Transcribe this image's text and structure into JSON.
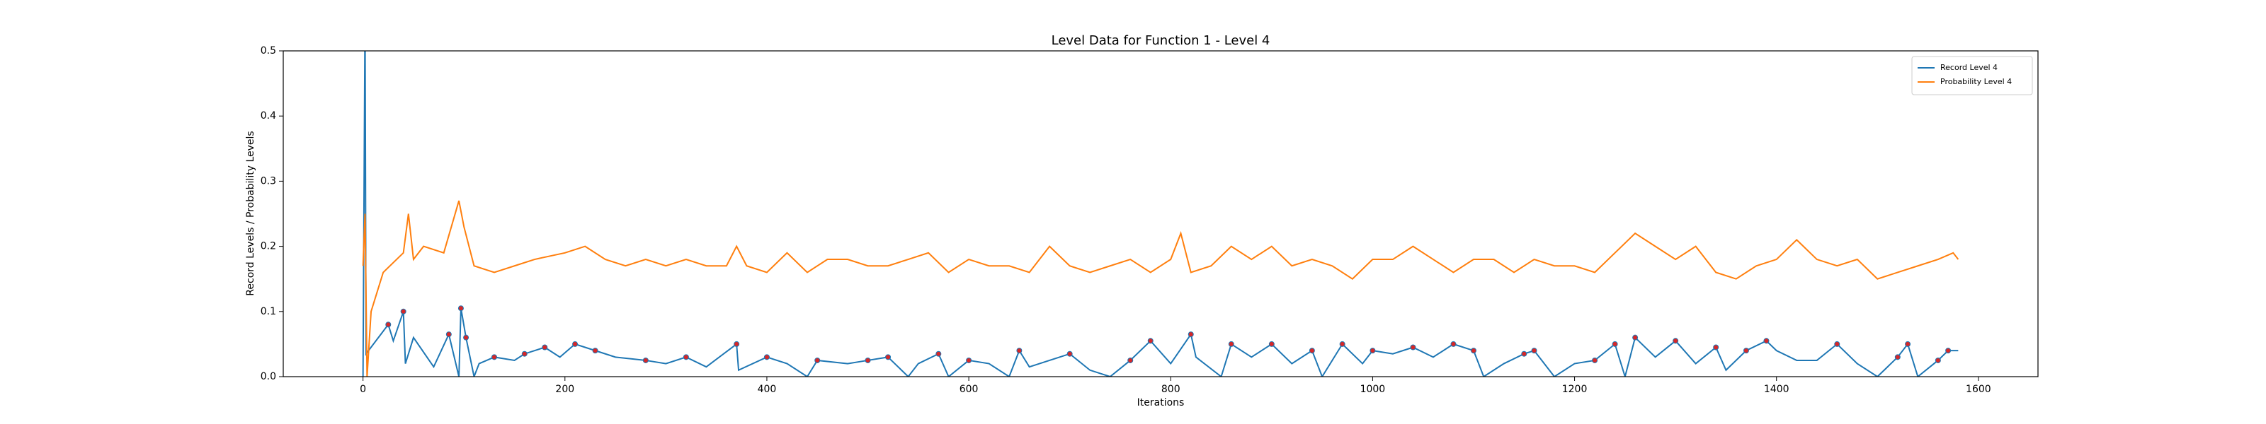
{
  "chart_data": {
    "type": "line",
    "title": "Level Data for Function 1 - Level 4",
    "x_label": "Iterations",
    "y_label": "Record Levels / Probability Levels",
    "xlim": [
      -79,
      1659
    ],
    "ylim": [
      0,
      0.5
    ],
    "xticks": [
      0,
      200,
      400,
      600,
      800,
      1000,
      1200,
      1400,
      1600
    ],
    "yticks": [
      {
        "value": 0,
        "label": "0.0"
      },
      0.1,
      0.2,
      0.3,
      0.4,
      0.5
    ],
    "legend": "upper right",
    "series": [
      {
        "name": "Record Level 4",
        "color": "#1f77b4",
        "x": [
          0,
          2,
          3,
          25,
          30,
          40,
          42,
          50,
          70,
          85,
          95,
          97,
          102,
          110,
          115,
          130,
          150,
          160,
          180,
          195,
          210,
          230,
          250,
          280,
          300,
          320,
          340,
          370,
          372,
          400,
          420,
          440,
          450,
          480,
          500,
          520,
          540,
          550,
          570,
          580,
          600,
          620,
          640,
          650,
          660,
          680,
          700,
          720,
          740,
          760,
          780,
          800,
          820,
          825,
          850,
          860,
          880,
          900,
          920,
          940,
          950,
          970,
          990,
          1000,
          1020,
          1040,
          1060,
          1080,
          1100,
          1110,
          1130,
          1150,
          1160,
          1180,
          1200,
          1220,
          1240,
          1250,
          1260,
          1280,
          1300,
          1320,
          1340,
          1350,
          1370,
          1390,
          1400,
          1420,
          1440,
          1460,
          1480,
          1500,
          1520,
          1530,
          1540,
          1560,
          1570,
          1580
        ],
        "values": [
          0,
          0.55,
          0.035,
          0.08,
          0.055,
          0.1,
          0.02,
          0.06,
          0.015,
          0.065,
          0,
          0.105,
          0.06,
          0,
          0.02,
          0.03,
          0.025,
          0.035,
          0.045,
          0.03,
          0.05,
          0.04,
          0.03,
          0.025,
          0.02,
          0.03,
          0.015,
          0.05,
          0.01,
          0.03,
          0.02,
          0,
          0.025,
          0.02,
          0.025,
          0.03,
          0,
          0.02,
          0.035,
          0,
          0.025,
          0.02,
          0,
          0.04,
          0.015,
          0.025,
          0.035,
          0.01,
          0,
          0.025,
          0.055,
          0.02,
          0.065,
          0.03,
          0,
          0.05,
          0.03,
          0.05,
          0.02,
          0.04,
          0,
          0.05,
          0.02,
          0.04,
          0.035,
          0.045,
          0.03,
          0.05,
          0.04,
          0,
          0.02,
          0.035,
          0.04,
          0,
          0.02,
          0.025,
          0.05,
          0,
          0.06,
          0.03,
          0.055,
          0.02,
          0.045,
          0.01,
          0.04,
          0.055,
          0.04,
          0.025,
          0.025,
          0.05,
          0.02,
          0,
          0.03,
          0.05,
          0,
          0.025,
          0.04,
          0.04
        ]
      },
      {
        "name": "Probability Level 4",
        "color": "#ff7f0e",
        "x": [
          0,
          2,
          4,
          8,
          20,
          40,
          45,
          50,
          60,
          80,
          95,
          100,
          105,
          110,
          130,
          150,
          170,
          200,
          220,
          240,
          260,
          280,
          300,
          320,
          340,
          360,
          370,
          380,
          400,
          420,
          440,
          460,
          480,
          500,
          520,
          540,
          560,
          580,
          600,
          620,
          640,
          660,
          680,
          700,
          720,
          740,
          760,
          780,
          800,
          810,
          820,
          840,
          860,
          880,
          900,
          920,
          940,
          960,
          980,
          1000,
          1020,
          1040,
          1060,
          1080,
          1100,
          1120,
          1140,
          1160,
          1180,
          1200,
          1220,
          1240,
          1260,
          1280,
          1300,
          1320,
          1340,
          1360,
          1380,
          1400,
          1420,
          1440,
          1460,
          1480,
          1500,
          1520,
          1540,
          1560,
          1575,
          1580
        ],
        "values": [
          0.17,
          0.25,
          0,
          0.1,
          0.16,
          0.19,
          0.25,
          0.18,
          0.2,
          0.19,
          0.27,
          0.23,
          0.2,
          0.17,
          0.16,
          0.17,
          0.18,
          0.19,
          0.2,
          0.18,
          0.17,
          0.18,
          0.17,
          0.18,
          0.17,
          0.17,
          0.2,
          0.17,
          0.16,
          0.19,
          0.16,
          0.18,
          0.18,
          0.17,
          0.17,
          0.18,
          0.19,
          0.16,
          0.18,
          0.17,
          0.17,
          0.16,
          0.2,
          0.17,
          0.16,
          0.17,
          0.18,
          0.16,
          0.18,
          0.22,
          0.16,
          0.17,
          0.2,
          0.18,
          0.2,
          0.17,
          0.18,
          0.17,
          0.15,
          0.18,
          0.18,
          0.2,
          0.18,
          0.16,
          0.18,
          0.18,
          0.16,
          0.18,
          0.17,
          0.17,
          0.16,
          0.19,
          0.22,
          0.2,
          0.18,
          0.2,
          0.16,
          0.15,
          0.17,
          0.18,
          0.21,
          0.18,
          0.17,
          0.18,
          0.15,
          0.16,
          0.17,
          0.18,
          0.19,
          0.18
        ]
      }
    ],
    "record_points": {
      "color": "#d62728",
      "x": [
        25,
        40,
        85,
        97,
        102,
        130,
        160,
        180,
        210,
        230,
        280,
        320,
        370,
        400,
        450,
        500,
        520,
        570,
        600,
        650,
        700,
        760,
        780,
        820,
        860,
        900,
        940,
        970,
        1000,
        1040,
        1080,
        1100,
        1150,
        1160,
        1220,
        1240,
        1260,
        1300,
        1340,
        1370,
        1390,
        1460,
        1520,
        1530,
        1560,
        1570
      ],
      "y": [
        0.08,
        0.1,
        0.065,
        0.105,
        0.06,
        0.03,
        0.035,
        0.045,
        0.05,
        0.04,
        0.025,
        0.03,
        0.05,
        0.03,
        0.025,
        0.025,
        0.03,
        0.035,
        0.025,
        0.04,
        0.035,
        0.025,
        0.055,
        0.065,
        0.05,
        0.05,
        0.04,
        0.05,
        0.04,
        0.045,
        0.05,
        0.04,
        0.035,
        0.04,
        0.025,
        0.05,
        0.06,
        0.055,
        0.045,
        0.04,
        0.055,
        0.05,
        0.03,
        0.05,
        0.025,
        0.04
      ]
    }
  }
}
